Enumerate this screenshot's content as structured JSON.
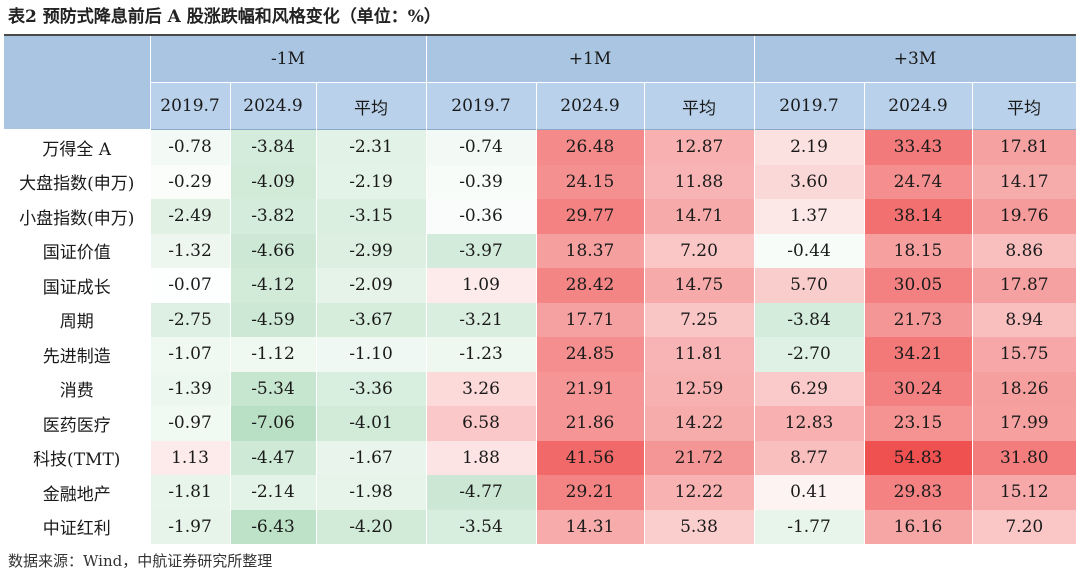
{
  "title": "表2  预防式降息前后 A 股涨跌幅和风格变化（单位：%）",
  "source": "数据来源：Wind，中航证券研究所整理",
  "colors": {
    "header_top": "#a9c5e2",
    "header_sub": "#b9d1ea",
    "positive_strong": "#ef5050",
    "negative_strong": "#b9e0c4"
  },
  "table": {
    "groups": [
      "-1M",
      "+1M",
      "+3M"
    ],
    "subheaders": [
      "2019.7",
      "2024.9",
      "平均",
      "2019.7",
      "2024.9",
      "平均",
      "2019.7",
      "2024.9",
      "平均"
    ],
    "rows": [
      {
        "name": "万得全 A",
        "values": [
          "-0.78",
          "-3.84",
          "-2.31",
          "-0.74",
          "26.48",
          "12.87",
          "2.19",
          "33.43",
          "17.81"
        ]
      },
      {
        "name": "大盘指数(申万)",
        "values": [
          "-0.29",
          "-4.09",
          "-2.19",
          "-0.39",
          "24.15",
          "11.88",
          "3.60",
          "24.74",
          "14.17"
        ]
      },
      {
        "name": "小盘指数(申万)",
        "values": [
          "-2.49",
          "-3.82",
          "-3.15",
          "-0.36",
          "29.77",
          "14.71",
          "1.37",
          "38.14",
          "19.76"
        ]
      },
      {
        "name": "国证价值",
        "values": [
          "-1.32",
          "-4.66",
          "-2.99",
          "-3.97",
          "18.37",
          "7.20",
          "-0.44",
          "18.15",
          "8.86"
        ]
      },
      {
        "name": "国证成长",
        "values": [
          "-0.07",
          "-4.12",
          "-2.09",
          "1.09",
          "28.42",
          "14.75",
          "5.70",
          "30.05",
          "17.87"
        ]
      },
      {
        "name": "周期",
        "values": [
          "-2.75",
          "-4.59",
          "-3.67",
          "-3.21",
          "17.71",
          "7.25",
          "-3.84",
          "21.73",
          "8.94"
        ]
      },
      {
        "name": "先进制造",
        "values": [
          "-1.07",
          "-1.12",
          "-1.10",
          "-1.23",
          "24.85",
          "11.81",
          "-2.70",
          "34.21",
          "15.75"
        ]
      },
      {
        "name": "消费",
        "values": [
          "-1.39",
          "-5.34",
          "-3.36",
          "3.26",
          "21.91",
          "12.59",
          "6.29",
          "30.24",
          "18.26"
        ]
      },
      {
        "name": "医药医疗",
        "values": [
          "-0.97",
          "-7.06",
          "-4.01",
          "6.58",
          "21.86",
          "14.22",
          "12.83",
          "23.15",
          "17.99"
        ]
      },
      {
        "name": "科技(TMT)",
        "values": [
          "1.13",
          "-4.47",
          "-1.67",
          "1.88",
          "41.56",
          "21.72",
          "8.77",
          "54.83",
          "31.80"
        ]
      },
      {
        "name": "金融地产",
        "values": [
          "-1.81",
          "-2.14",
          "-1.98",
          "-4.77",
          "29.21",
          "12.22",
          "0.41",
          "29.83",
          "15.12"
        ]
      },
      {
        "name": "中证红利",
        "values": [
          "-1.97",
          "-6.43",
          "-4.20",
          "-3.54",
          "14.31",
          "5.38",
          "-1.77",
          "16.16",
          "7.20"
        ]
      }
    ]
  }
}
